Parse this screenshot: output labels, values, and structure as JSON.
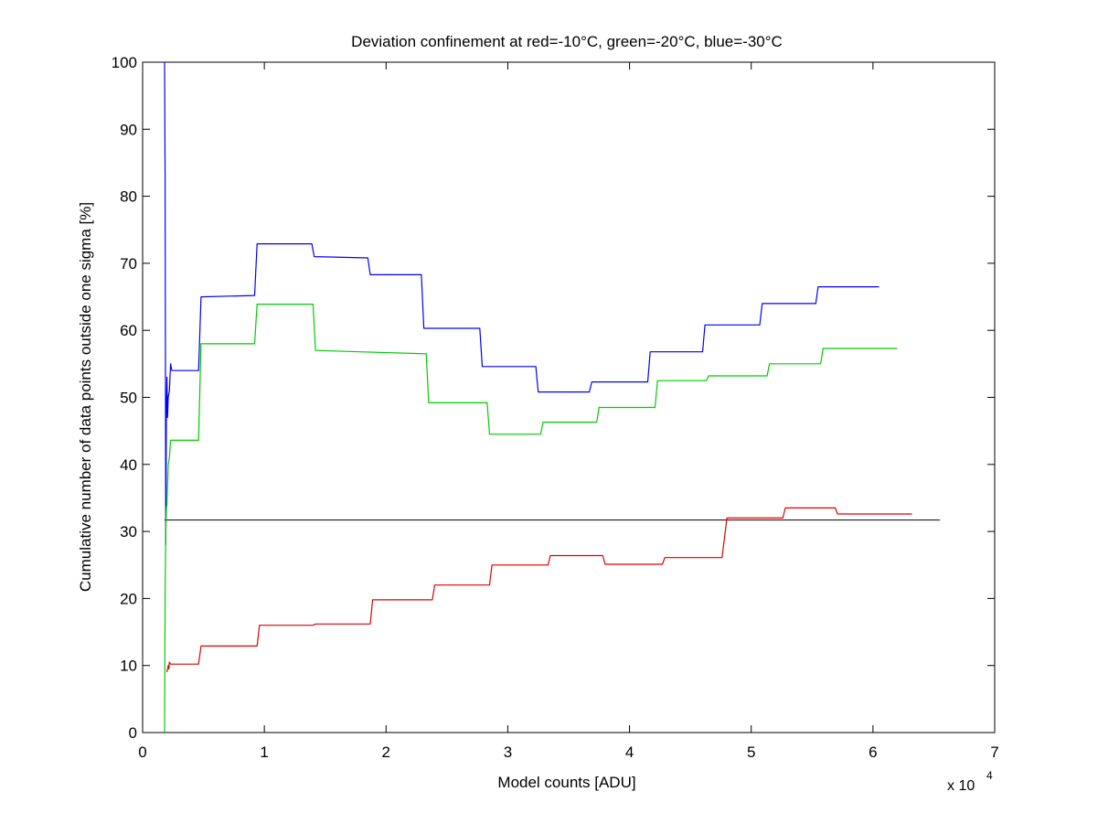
{
  "chart_data": {
    "type": "line",
    "title": "Deviation confinement at red=-10°C, green=-20°C, blue=-30°C",
    "xlabel": "Model counts [ADU]",
    "ylabel": "Cumulative number of data points outside one sigma [%]",
    "x_multiplier_label": "x 10",
    "x_multiplier_exponent": "4",
    "xlim": [
      0,
      70000
    ],
    "ylim": [
      0,
      100
    ],
    "x_ticks": [
      0,
      10000,
      20000,
      30000,
      40000,
      50000,
      60000,
      70000
    ],
    "x_tick_labels": [
      "0",
      "1",
      "2",
      "3",
      "4",
      "5",
      "6",
      "7"
    ],
    "y_ticks": [
      0,
      10,
      20,
      30,
      40,
      50,
      60,
      70,
      80,
      90,
      100
    ],
    "y_tick_labels": [
      "0",
      "10",
      "20",
      "30",
      "40",
      "50",
      "60",
      "70",
      "80",
      "90",
      "100"
    ],
    "grid": false,
    "reference_line": {
      "y": 31.7,
      "x": [
        1800,
        65500
      ],
      "color": "#000000"
    },
    "series": [
      {
        "color": "#0000ff",
        "x": [
          1800,
          1850,
          1900,
          1950,
          2000,
          2050,
          2100,
          2200,
          2300,
          2400,
          2500,
          2600,
          4600,
          4800,
          9200,
          9400,
          13900,
          14100,
          18500,
          18700,
          22900,
          23100,
          27700,
          27900,
          32300,
          32500,
          36700,
          36900,
          41500,
          41700,
          46000,
          46200,
          50700,
          50900,
          55300,
          55500,
          60500
        ],
        "y": [
          100,
          83,
          28,
          48,
          53,
          47,
          50,
          51,
          55,
          54,
          54,
          54,
          54,
          65,
          65.2,
          72.9,
          72.9,
          71,
          70.8,
          68.3,
          68.3,
          60.3,
          60.3,
          54.6,
          54.6,
          50.8,
          50.8,
          52.3,
          52.3,
          56.8,
          56.8,
          60.8,
          60.8,
          64,
          64,
          66.5,
          66.5
        ]
      },
      {
        "color": "#00cc00",
        "x": [
          1800,
          1850,
          1900,
          1950,
          2000,
          2050,
          2100,
          2200,
          2300,
          2400,
          4600,
          4800,
          9200,
          9400,
          14000,
          14200,
          23300,
          23500,
          28300,
          28500,
          32700,
          32900,
          37300,
          37500,
          42100,
          42300,
          46300,
          46500,
          51300,
          51500,
          55700,
          55900,
          62000
        ],
        "y": [
          0,
          20,
          30,
          33.5,
          34,
          37,
          40,
          41,
          43.6,
          43.6,
          43.6,
          58,
          58,
          63.9,
          63.9,
          57,
          56.5,
          49.2,
          49.2,
          44.5,
          44.5,
          46.3,
          46.3,
          48.5,
          48.5,
          52.5,
          52.5,
          53.2,
          53.2,
          55,
          55,
          57.3,
          57.3
        ]
      },
      {
        "color": "#dd0000",
        "x": [
          2000,
          2050,
          2100,
          2150,
          2200,
          2300,
          2400,
          4600,
          4800,
          9400,
          9600,
          14000,
          14200,
          18700,
          18900,
          23800,
          24000,
          28500,
          28700,
          33300,
          33500,
          37800,
          38000,
          42700,
          42900,
          47600,
          48000,
          52600,
          52800,
          56900,
          57100,
          63200
        ],
        "y": [
          9,
          9.5,
          10,
          9.5,
          10.5,
          10.2,
          10.2,
          10.2,
          12.9,
          12.9,
          16,
          16,
          16.2,
          16.2,
          19.8,
          19.8,
          22,
          22,
          25,
          25,
          26.4,
          26.4,
          25.1,
          25.1,
          26.1,
          26.1,
          32,
          32,
          33.5,
          33.5,
          32.6,
          32.6
        ]
      }
    ]
  }
}
